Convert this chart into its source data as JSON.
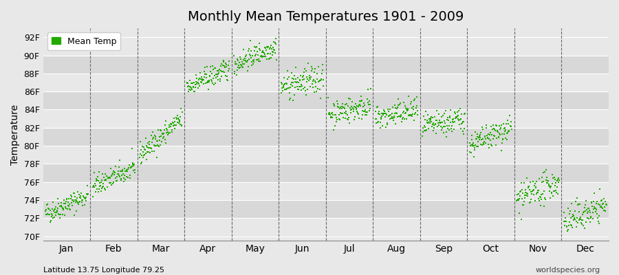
{
  "title": "Monthly Mean Temperatures 1901 - 2009",
  "ylabel": "Temperature",
  "yticks": [
    "70F",
    "72F",
    "74F",
    "76F",
    "78F",
    "80F",
    "82F",
    "84F",
    "86F",
    "88F",
    "90F",
    "92F"
  ],
  "yvalues": [
    70,
    72,
    74,
    76,
    78,
    80,
    82,
    84,
    86,
    88,
    90,
    92
  ],
  "ylim": [
    69.5,
    93.0
  ],
  "months": [
    "Jan",
    "Feb",
    "Mar",
    "Apr",
    "May",
    "Jun",
    "Jul",
    "Aug",
    "Sep",
    "Oct",
    "Nov",
    "Dec"
  ],
  "month_positions": [
    0.5,
    1.5,
    2.5,
    3.5,
    4.5,
    5.5,
    6.5,
    7.5,
    8.5,
    9.5,
    10.5,
    11.5
  ],
  "vline_positions": [
    1,
    2,
    3,
    4,
    5,
    6,
    7,
    8,
    9,
    10,
    11
  ],
  "dot_color": "#22aa00",
  "dot_size": 3,
  "bg_color": "#e8e8e8",
  "legend_label": "Mean Temp",
  "footer_left": "Latitude 13.75 Longitude 79.25",
  "footer_right": "worldspecies.org",
  "title_fontsize": 14,
  "axis_fontsize": 9,
  "footer_fontsize": 8,
  "seed": 42,
  "n_years": 109,
  "monthly_means_start": [
    72.5,
    75.5,
    79.0,
    86.5,
    89.0,
    86.5,
    83.5,
    83.0,
    82.0,
    80.0,
    74.0,
    71.5
  ],
  "monthly_means_end": [
    74.5,
    77.5,
    83.0,
    88.5,
    91.0,
    87.5,
    84.5,
    84.0,
    83.0,
    82.0,
    76.0,
    73.5
  ],
  "monthly_noise_std": [
    0.6,
    0.6,
    0.6,
    0.6,
    0.6,
    0.8,
    0.7,
    0.7,
    0.7,
    0.7,
    0.8,
    0.8
  ],
  "band_colors": [
    "#e8e8e8",
    "#d8d8d8"
  ],
  "band_ranges": [
    [
      92,
      90
    ],
    [
      90,
      88
    ],
    [
      88,
      86
    ],
    [
      86,
      84
    ],
    [
      84,
      82
    ],
    [
      82,
      80
    ],
    [
      80,
      78
    ],
    [
      78,
      76
    ],
    [
      76,
      74
    ],
    [
      74,
      72
    ],
    [
      72,
      70
    ]
  ]
}
